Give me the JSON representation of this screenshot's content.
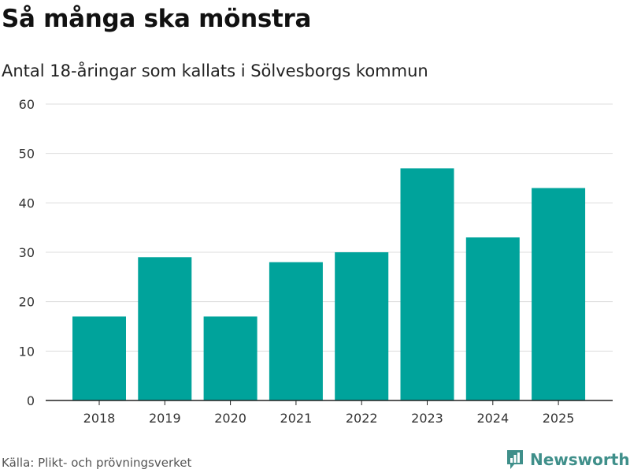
{
  "header": {
    "title": "Så många ska mönstra",
    "subtitle": "Antal 18-åringar som kallats i Sölvesborgs kommun"
  },
  "footer": {
    "source": "Källa: Plikt- och prövningsverket",
    "brand": "Newsworthy",
    "brand_icon": "bar-chart-logo-icon"
  },
  "colors": {
    "bar": "#00a39b",
    "grid": "#dddddd",
    "axis": "#222222",
    "brand": "#3f8f8a"
  },
  "chart_data": {
    "type": "bar",
    "title": "Så många ska mönstra",
    "subtitle": "Antal 18-åringar som kallats i Sölvesborgs kommun",
    "xlabel": "",
    "ylabel": "",
    "categories": [
      "2018",
      "2019",
      "2020",
      "2021",
      "2022",
      "2023",
      "2024",
      "2025"
    ],
    "values": [
      17,
      29,
      17,
      28,
      30,
      47,
      33,
      43
    ],
    "ylim": [
      0,
      60
    ],
    "yticks": [
      0,
      10,
      20,
      30,
      40,
      50,
      60
    ],
    "grid": true
  }
}
